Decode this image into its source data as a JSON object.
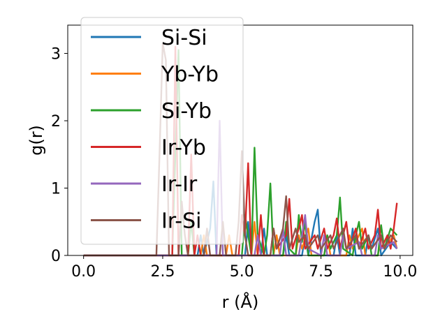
{
  "chart_data": {
    "type": "line",
    "title": "",
    "xlabel": "r (Å)",
    "ylabel": "g(r)",
    "xlim": [
      -0.5,
      10.4
    ],
    "ylim": [
      0,
      3.42
    ],
    "xticks": [
      0.0,
      2.5,
      5.0,
      7.5,
      10.0
    ],
    "xtick_labels": [
      "0.0",
      "2.5",
      "5.0",
      "7.5",
      "10.0"
    ],
    "yticks": [
      0,
      1,
      2,
      3
    ],
    "ytick_labels": [
      "0",
      "1",
      "2",
      "3"
    ],
    "grid": false,
    "legend_position": "upper-left",
    "series": [
      {
        "name": "Si-Si",
        "color": "#1f77b4",
        "points": [
          [
            0,
            0
          ],
          [
            3.6,
            0
          ],
          [
            3.7,
            0.3
          ],
          [
            3.8,
            0
          ],
          [
            4.0,
            0.4
          ],
          [
            4.1,
            1.1
          ],
          [
            4.2,
            0
          ],
          [
            5.1,
            0
          ],
          [
            5.2,
            0.5
          ],
          [
            5.3,
            0
          ],
          [
            5.6,
            0
          ],
          [
            5.7,
            0.4
          ],
          [
            5.8,
            0
          ],
          [
            6.3,
            0
          ],
          [
            6.4,
            0.3
          ],
          [
            6.5,
            0
          ],
          [
            6.9,
            0
          ],
          [
            7.0,
            0.3
          ],
          [
            7.1,
            0
          ],
          [
            7.3,
            0.5
          ],
          [
            7.4,
            0.68
          ],
          [
            7.5,
            0
          ],
          [
            7.9,
            0
          ],
          [
            8.0,
            0.3
          ],
          [
            8.1,
            0
          ],
          [
            8.4,
            0
          ],
          [
            8.5,
            0.4
          ],
          [
            8.6,
            0
          ],
          [
            8.9,
            0
          ],
          [
            9.0,
            0.3
          ],
          [
            9.1,
            0.1
          ],
          [
            9.3,
            0.4
          ],
          [
            9.4,
            0
          ],
          [
            9.7,
            0.2
          ],
          [
            9.9,
            0.1
          ]
        ]
      },
      {
        "name": "Yb-Yb",
        "color": "#ff7f0e",
        "points": [
          [
            0,
            0
          ],
          [
            3.7,
            0
          ],
          [
            3.8,
            0.3
          ],
          [
            3.9,
            0
          ],
          [
            4.5,
            0
          ],
          [
            4.6,
            0.3
          ],
          [
            4.7,
            0
          ],
          [
            5.3,
            0
          ],
          [
            5.4,
            0.5
          ],
          [
            5.5,
            0
          ],
          [
            6.0,
            0
          ],
          [
            6.1,
            0.3
          ],
          [
            6.2,
            0
          ],
          [
            6.7,
            0
          ],
          [
            6.8,
            0.3
          ],
          [
            6.9,
            0.1
          ],
          [
            7.1,
            0.4
          ],
          [
            7.2,
            0
          ],
          [
            7.6,
            0
          ],
          [
            7.7,
            0.3
          ],
          [
            7.8,
            0
          ],
          [
            8.3,
            0
          ],
          [
            8.4,
            0.3
          ],
          [
            8.5,
            0.1
          ],
          [
            8.8,
            0.4
          ],
          [
            8.9,
            0
          ],
          [
            9.3,
            0
          ],
          [
            9.4,
            0.3
          ],
          [
            9.5,
            0.1
          ],
          [
            9.8,
            0.3
          ],
          [
            9.9,
            0.1
          ]
        ]
      },
      {
        "name": "Si-Yb",
        "color": "#2ca02c",
        "points": [
          [
            0,
            0
          ],
          [
            2.8,
            0
          ],
          [
            2.9,
            1.5
          ],
          [
            3.0,
            3.05
          ],
          [
            3.1,
            0
          ],
          [
            3.3,
            0
          ],
          [
            3.4,
            0.5
          ],
          [
            3.5,
            0
          ],
          [
            5.0,
            0
          ],
          [
            5.1,
            0.6
          ],
          [
            5.2,
            0.3
          ],
          [
            5.3,
            0
          ],
          [
            5.4,
            1.6
          ],
          [
            5.5,
            0.3
          ],
          [
            5.7,
            0
          ],
          [
            5.8,
            0.3
          ],
          [
            5.9,
            1.07
          ],
          [
            6.0,
            0
          ],
          [
            6.3,
            0
          ],
          [
            6.4,
            0.5
          ],
          [
            6.5,
            0.1
          ],
          [
            6.7,
            0
          ],
          [
            6.8,
            0.6
          ],
          [
            6.9,
            0.2
          ],
          [
            7.0,
            0.5
          ],
          [
            7.1,
            0
          ],
          [
            7.6,
            0
          ],
          [
            7.7,
            0.3
          ],
          [
            7.8,
            0.1
          ],
          [
            8.0,
            0.3
          ],
          [
            8.1,
            0.86
          ],
          [
            8.2,
            0.1
          ],
          [
            8.5,
            0
          ],
          [
            8.6,
            0.3
          ],
          [
            8.7,
            0.5
          ],
          [
            8.8,
            0.1
          ],
          [
            9.0,
            0.3
          ],
          [
            9.1,
            0
          ],
          [
            9.3,
            0
          ],
          [
            9.4,
            0.45
          ],
          [
            9.5,
            0.1
          ],
          [
            9.7,
            0.4
          ],
          [
            9.9,
            0.3
          ]
        ]
      },
      {
        "name": "Ir-Yb",
        "color": "#d62728",
        "points": [
          [
            0,
            0
          ],
          [
            2.8,
            0
          ],
          [
            2.9,
            3.1
          ],
          [
            3.0,
            0
          ],
          [
            3.3,
            0
          ],
          [
            3.4,
            1.5
          ],
          [
            3.5,
            0
          ],
          [
            3.6,
            0.3
          ],
          [
            3.7,
            0
          ],
          [
            4.9,
            0
          ],
          [
            5.0,
            0.6
          ],
          [
            5.1,
            0.3
          ],
          [
            5.2,
            1.37
          ],
          [
            5.3,
            0
          ],
          [
            5.5,
            0
          ],
          [
            5.6,
            0.6
          ],
          [
            5.7,
            0
          ],
          [
            5.9,
            0
          ],
          [
            6.0,
            0.4
          ],
          [
            6.1,
            0.1
          ],
          [
            6.4,
            0.3
          ],
          [
            6.5,
            0.84
          ],
          [
            6.6,
            0.1
          ],
          [
            6.8,
            0.4
          ],
          [
            6.9,
            0.6
          ],
          [
            7.0,
            0.1
          ],
          [
            7.3,
            0.3
          ],
          [
            7.4,
            0.1
          ],
          [
            7.6,
            0.4
          ],
          [
            7.7,
            0.1
          ],
          [
            7.9,
            0.3
          ],
          [
            8.0,
            0.55
          ],
          [
            8.1,
            0.1
          ],
          [
            8.3,
            0.5
          ],
          [
            8.4,
            0.1
          ],
          [
            8.6,
            0.4
          ],
          [
            8.7,
            0.1
          ],
          [
            8.9,
            0.4
          ],
          [
            9.0,
            0.1
          ],
          [
            9.2,
            0.3
          ],
          [
            9.3,
            0.68
          ],
          [
            9.4,
            0.1
          ],
          [
            9.6,
            0.3
          ],
          [
            9.7,
            0.1
          ],
          [
            9.8,
            0.4
          ],
          [
            9.9,
            0.78
          ]
        ]
      },
      {
        "name": "Ir-Ir",
        "color": "#9467bd",
        "points": [
          [
            0,
            0
          ],
          [
            4.2,
            0
          ],
          [
            4.3,
            2.0
          ],
          [
            4.4,
            0
          ],
          [
            5.4,
            0
          ],
          [
            5.5,
            0.3
          ],
          [
            5.6,
            0
          ],
          [
            6.2,
            0
          ],
          [
            6.3,
            0.4
          ],
          [
            6.4,
            0
          ],
          [
            6.8,
            0
          ],
          [
            6.9,
            0.3
          ],
          [
            7.0,
            0.6
          ],
          [
            7.1,
            0.1
          ],
          [
            7.5,
            0
          ],
          [
            7.6,
            0.3
          ],
          [
            7.7,
            0
          ],
          [
            8.1,
            0
          ],
          [
            8.2,
            0.3
          ],
          [
            8.3,
            0.1
          ],
          [
            8.7,
            0.2
          ],
          [
            8.8,
            0
          ],
          [
            9.2,
            0
          ],
          [
            9.3,
            0.3
          ],
          [
            9.4,
            0.1
          ],
          [
            9.8,
            0.2
          ],
          [
            9.9,
            0.1
          ]
        ]
      },
      {
        "name": "Ir-Si",
        "color": "#8c564b",
        "points": [
          [
            0,
            0
          ],
          [
            2.3,
            0
          ],
          [
            2.4,
            1.5
          ],
          [
            2.5,
            3.15
          ],
          [
            2.6,
            2.9
          ],
          [
            2.7,
            0
          ],
          [
            3.0,
            0
          ],
          [
            3.1,
            0.8
          ],
          [
            3.2,
            0.3
          ],
          [
            3.3,
            0
          ],
          [
            3.8,
            0
          ],
          [
            3.9,
            0.4
          ],
          [
            4.0,
            0
          ],
          [
            4.3,
            0
          ],
          [
            4.4,
            0.5
          ],
          [
            4.5,
            0
          ],
          [
            4.8,
            0
          ],
          [
            4.9,
            0.5
          ],
          [
            5.0,
            1.55
          ],
          [
            5.1,
            0.3
          ],
          [
            5.2,
            0
          ],
          [
            5.9,
            0
          ],
          [
            6.0,
            0.4
          ],
          [
            6.1,
            0.1
          ],
          [
            6.3,
            0.4
          ],
          [
            6.4,
            0.88
          ],
          [
            6.5,
            0.1
          ],
          [
            6.7,
            0.4
          ],
          [
            6.8,
            0.2
          ],
          [
            7.0,
            0.3
          ],
          [
            7.1,
            0.1
          ],
          [
            7.4,
            0.3
          ],
          [
            7.5,
            0.1
          ],
          [
            7.8,
            0.3
          ],
          [
            7.9,
            0.1
          ],
          [
            8.2,
            0.4
          ],
          [
            8.3,
            0.1
          ],
          [
            8.6,
            0.3
          ],
          [
            8.7,
            0.1
          ],
          [
            9.0,
            0.3
          ],
          [
            9.1,
            0.1
          ],
          [
            9.4,
            0.3
          ],
          [
            9.5,
            0.1
          ],
          [
            9.7,
            0.3
          ],
          [
            9.9,
            0.2
          ]
        ]
      }
    ]
  }
}
